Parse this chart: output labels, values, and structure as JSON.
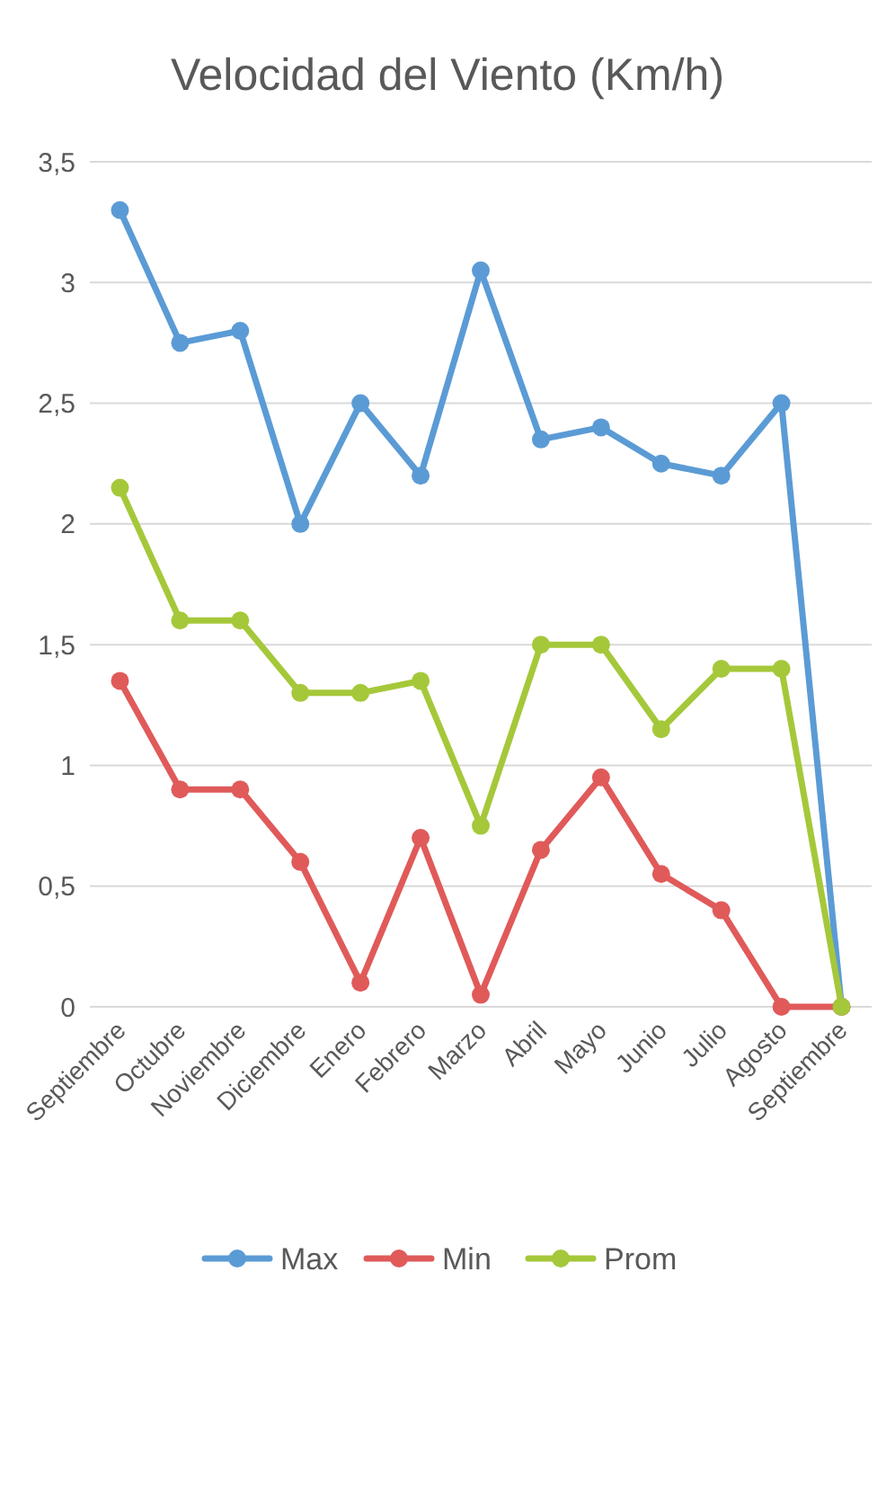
{
  "chart_data": {
    "type": "line",
    "title": "Velocidad del Viento (Km/h)",
    "categories": [
      "Septiembre",
      "Octubre",
      "Noviembre",
      "Diciembre",
      "Enero",
      "Febrero",
      "Marzo",
      "Abril",
      "Mayo",
      "Junio",
      "Julio",
      "Agosto",
      "Septiembre"
    ],
    "series": [
      {
        "name": "Max",
        "color": "#5b9bd5",
        "values": [
          3.3,
          2.75,
          2.8,
          2.0,
          2.5,
          2.2,
          3.05,
          2.35,
          2.4,
          2.25,
          2.2,
          2.5,
          0
        ]
      },
      {
        "name": "Min",
        "color": "#e05a5a",
        "values": [
          1.35,
          0.9,
          0.9,
          0.6,
          0.1,
          0.7,
          0.05,
          0.65,
          0.95,
          0.55,
          0.4,
          0,
          0
        ]
      },
      {
        "name": "Prom",
        "color": "#a5c83a",
        "values": [
          2.15,
          1.6,
          1.6,
          1.3,
          1.3,
          1.35,
          0.75,
          1.5,
          1.5,
          1.15,
          1.4,
          1.4,
          0
        ]
      }
    ],
    "ylim": [
      0,
      3.5
    ],
    "yticks": [
      0,
      {
        "value": 0.5,
        "label": "0,5"
      },
      1,
      {
        "value": 1.5,
        "label": "1,5"
      },
      2,
      {
        "value": 2.5,
        "label": "2,5"
      },
      3,
      {
        "value": 3.5,
        "label": "3,5"
      }
    ],
    "grid": "y",
    "legend": "bottom",
    "marker": "circle",
    "line_style": "solid"
  }
}
